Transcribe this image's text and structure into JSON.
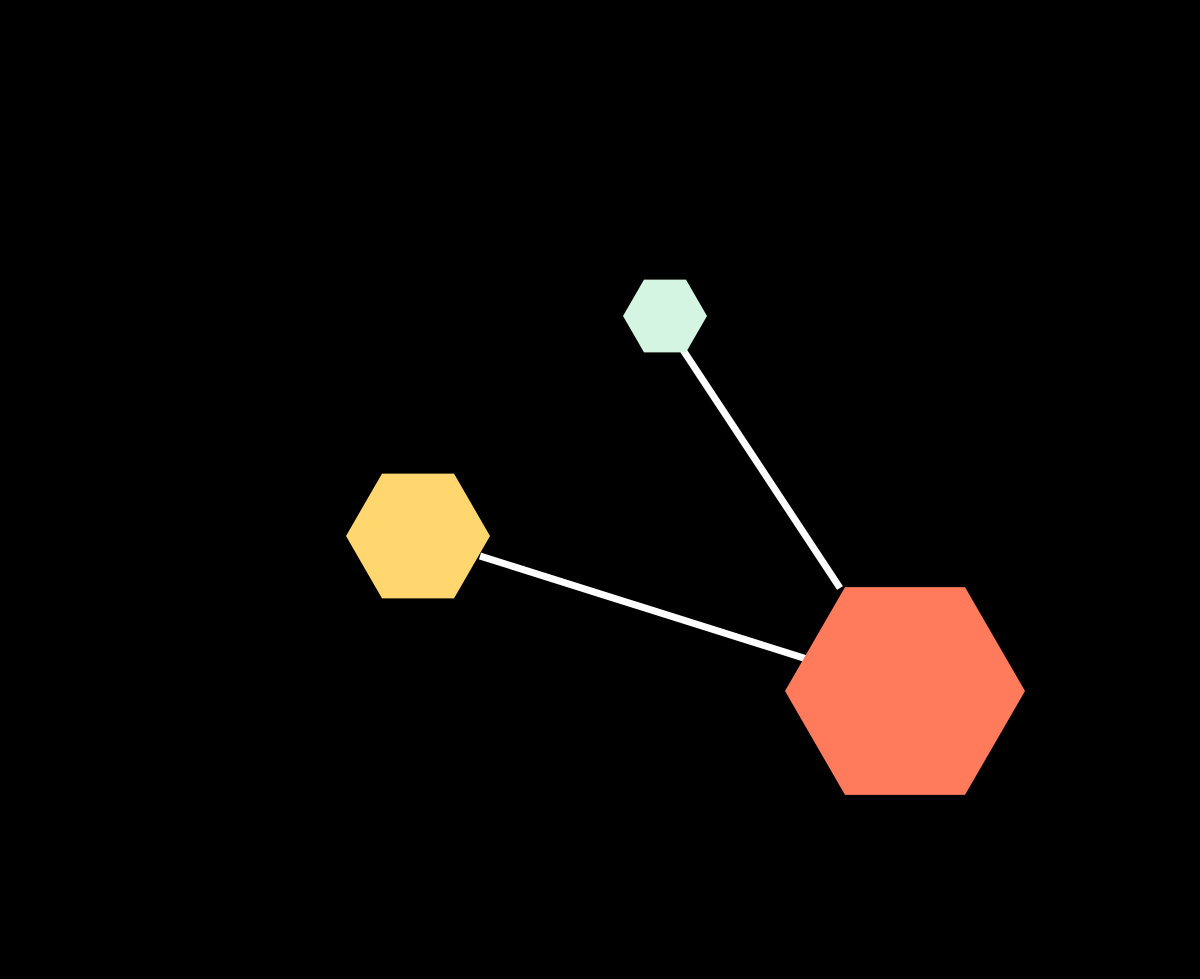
{
  "canvas": {
    "background": "#000000"
  },
  "diagram": {
    "nodes": [
      {
        "id": "mint",
        "name": "mint-hexagon-node",
        "shape": "hexagon",
        "color": "#d4f5e2"
      },
      {
        "id": "yellow",
        "name": "yellow-hexagon-node",
        "shape": "hexagon",
        "color": "#ffd76e"
      },
      {
        "id": "coral",
        "name": "coral-hexagon-node",
        "shape": "hexagon",
        "color": "#ff7b5c"
      }
    ],
    "edges": [
      {
        "from": "mint",
        "to": "coral",
        "color": "#ffffff"
      },
      {
        "from": "yellow",
        "to": "coral",
        "color": "#ffffff"
      }
    ]
  }
}
